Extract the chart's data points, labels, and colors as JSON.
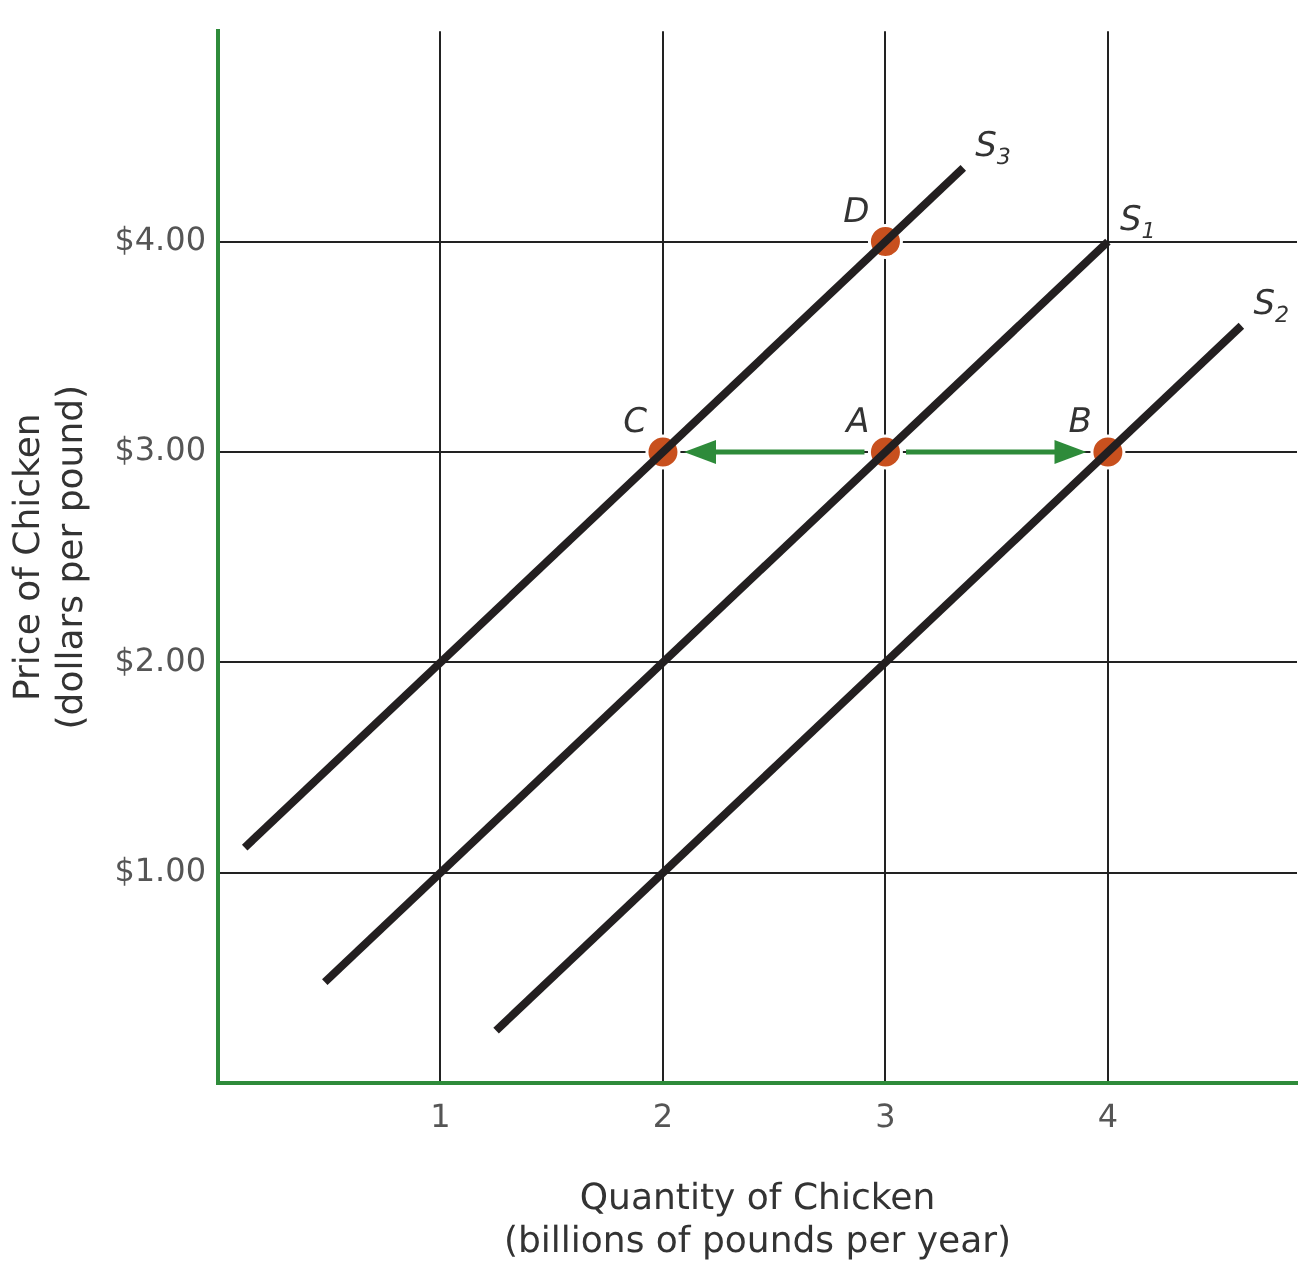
{
  "chart_data": {
    "type": "line",
    "xlabel": "Quantity of Chicken\n(billions of pounds per year)",
    "ylabel": "Price of Chicken\n(dollars per pound)",
    "xlim": [
      0,
      4.85
    ],
    "ylim": [
      0,
      5
    ],
    "xticks": [
      1,
      2,
      3,
      4
    ],
    "yticks": [
      {
        "value": 1,
        "label": "$1.00"
      },
      {
        "value": 2,
        "label": "$2.00"
      },
      {
        "value": 3,
        "label": "$3.00"
      },
      {
        "value": 4,
        "label": "$4.00"
      }
    ],
    "grid": true,
    "legend": false,
    "series": [
      {
        "name": "S$_{3}$",
        "color": "#231f20",
        "marker": "none",
        "x": [
          0.12,
          3.35
        ],
        "values": [
          1.12,
          4.35
        ]
      },
      {
        "name": "S$_{1}$",
        "color": "#231f20",
        "marker": "none",
        "x": [
          0.48,
          4
        ],
        "values": [
          0.48,
          4
        ]
      },
      {
        "name": "S$_{2}$",
        "color": "#231f20",
        "marker": "none",
        "x": [
          1.25,
          4.6
        ],
        "values": [
          0.25,
          3.6
        ]
      },
      {
        "type": "scatter",
        "color": "#c8501e",
        "marker": "circle",
        "x": [
          3,
          4,
          2,
          3
        ],
        "values": [
          3,
          3,
          3,
          4
        ]
      }
    ],
    "annotations": [
      {
        "text": "A",
        "x": 3,
        "y": 3
      },
      {
        "text": "B",
        "x": 4,
        "y": 3
      },
      {
        "text": "C",
        "x": 2,
        "y": 3
      },
      {
        "text": "D",
        "x": 3,
        "y": 4
      }
    ]
  }
}
